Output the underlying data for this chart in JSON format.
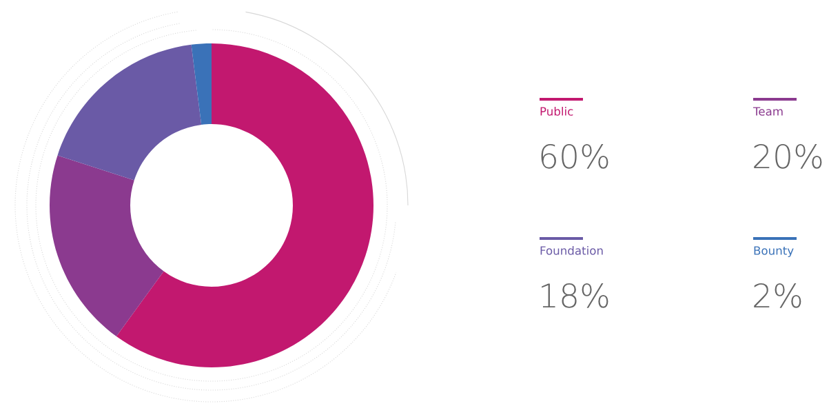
{
  "chart_data": {
    "type": "donut",
    "categories": [
      "Public",
      "Team",
      "Foundation",
      "Bounty"
    ],
    "values": [
      60,
      20,
      18,
      2
    ],
    "value_labels": [
      "60%",
      "20%",
      "18%",
      "2%"
    ],
    "colors": [
      "#c2186f",
      "#8b3a8f",
      "#6a5aa6",
      "#3a72b8"
    ],
    "legend": "right"
  }
}
